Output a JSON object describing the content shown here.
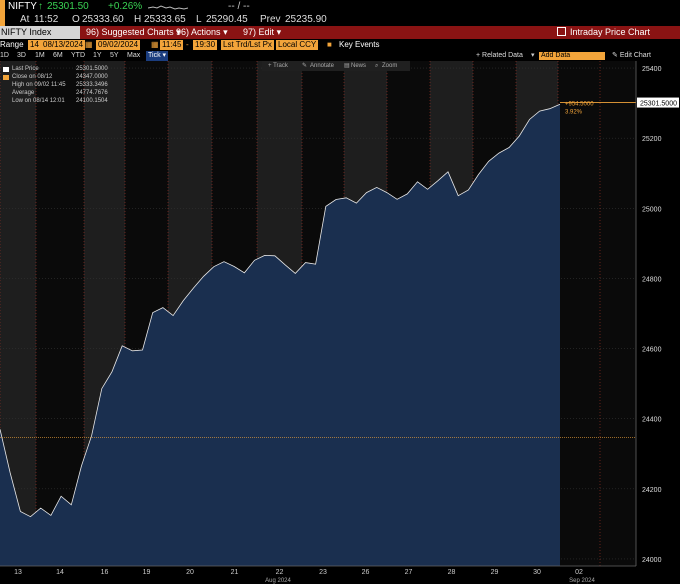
{
  "ticker": {
    "symbol": "NIFTY",
    "arrow": "↑",
    "last": "25301.50",
    "change": "+0.26%",
    "dashes": "-- / --"
  },
  "quote": {
    "at_label": "At",
    "at_time": "11:52",
    "o_label": "O",
    "o_value": "25333.60",
    "h_label": "H",
    "h_value": "25333.65",
    "l_label": "L",
    "l_value": "25290.45",
    "prev_label": "Prev",
    "prev_value": "25235.90"
  },
  "menubar": {
    "index_name": "NIFTY Index",
    "suggested_num": "96)",
    "suggested": "Suggested Charts",
    "actions_num": "96)",
    "actions": "Actions",
    "edit_num": "97)",
    "edit": "Edit",
    "right_title": "Intraday Price Chart"
  },
  "rangebar": {
    "range_label": "Range",
    "start_num": "14",
    "start_date": "08/13/2024",
    "end_date": "09/02/2024",
    "start_time": "11:45",
    "end_time": "19:30",
    "trade_type": "Lst Trd/Lst Px",
    "currency": "Local CCY",
    "key_events_label": "Key Events"
  },
  "periods": [
    "1D",
    "3D",
    "1M",
    "6M",
    "YTD",
    "1Y",
    "5Y",
    "Max"
  ],
  "period_active": "Tick",
  "periodbar_right": {
    "related": "+ Related Data",
    "add_data": "Add Data",
    "edit_chart": "Edit Chart"
  },
  "tools": {
    "track": "+ Track",
    "annotate": "Annotate",
    "news": "News",
    "zoom": "Zoom"
  },
  "legend": [
    {
      "label": "Last Price",
      "value": "25301.5000",
      "color": "#ffffff"
    },
    {
      "label": "Close on 08/12",
      "value": "24347.0000",
      "color": "#f2a43a"
    },
    {
      "label": "High on 09/02 11:45",
      "value": "25333.3496",
      "color": "#ffffff"
    },
    {
      "label": "Average",
      "value": "24774.7676",
      "color": "#ffffff"
    },
    {
      "label": "Low on 08/14 12:01",
      "value": "24100.1504",
      "color": "#ffffff"
    }
  ],
  "annotation": {
    "change": "+954.5000",
    "pct": "3.92%"
  },
  "colors": {
    "menubar": "#8a1313",
    "field_orange": "#f2a43a",
    "area_fill": "#1a2f4f",
    "shade": "#1e1e1e",
    "grid_red": "#c0392b",
    "close_line": "#f2a43a"
  },
  "chart_data": {
    "type": "area",
    "title": "",
    "xlabel": "Aug 2024",
    "ylabel": "",
    "ylim": [
      23980,
      25420
    ],
    "y_ticks": [
      24000,
      24200,
      24400,
      24600,
      24800,
      25000,
      25200,
      25400
    ],
    "y_tick_labels": [
      "24000",
      "24200",
      "24400",
      "24600",
      "24800",
      "25000",
      "25200",
      "25400"
    ],
    "x_tick_labels": [
      "13",
      "14",
      "16",
      "19",
      "20",
      "21",
      "22",
      "23",
      "26",
      "27",
      "28",
      "29",
      "30",
      "02"
    ],
    "x_month_labels": [
      "Aug 2024",
      "Sep 2024"
    ],
    "last_price_label": "25301.5000",
    "close_reference": 24347,
    "series": [
      {
        "name": "Last Price",
        "values": [
          24370,
          24240,
          24130,
          24120,
          24150,
          24130,
          24180,
          24150,
          24260,
          24350,
          24490,
          24540,
          24610,
          24590,
          24590,
          24700,
          24720,
          24700,
          24740,
          24770,
          24800,
          24830,
          24850,
          24840,
          24820,
          24850,
          24860,
          24860,
          24840,
          24820,
          24850,
          24840,
          25000,
          25020,
          25030,
          25020,
          25050,
          25060,
          25040,
          25020,
          25040,
          25080,
          25060,
          25080,
          25100,
          25030,
          25050,
          25100,
          25140,
          25160,
          25170,
          25200,
          25250,
          25280,
          25290,
          25300
        ]
      }
    ]
  }
}
